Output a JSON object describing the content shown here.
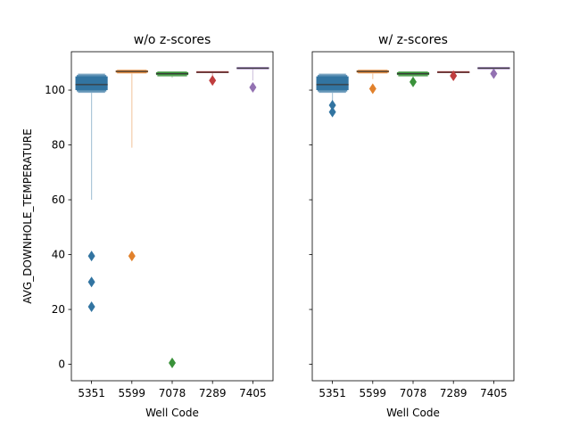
{
  "chart_data": [
    {
      "type": "boxen",
      "title": "w/o z-scores",
      "xlabel": "Well Code",
      "ylabel": "AVG_DOWNHOLE_TEMPERATURE",
      "ylim": [
        -6,
        114
      ],
      "yticks": [
        0,
        20,
        40,
        60,
        80,
        100
      ],
      "categories": [
        "5351",
        "5599",
        "7078",
        "7289",
        "7405"
      ],
      "colors": [
        "#3274a1",
        "#e1812c",
        "#3a923a",
        "#c03d3e",
        "#9372b2"
      ],
      "boxes": [
        {
          "median": 102,
          "boxes": [
            [
              100,
              105
            ],
            [
              99.5,
              105.5
            ],
            [
              99,
              106
            ]
          ],
          "tail": [
            60,
            99
          ],
          "outliers": [
            39.5,
            30,
            21
          ]
        },
        {
          "median": 106.8,
          "boxes": [
            [
              106.4,
              107.2
            ],
            [
              106.1,
              107.4
            ]
          ],
          "tail": [
            79,
            106
          ],
          "outliers": [
            39.5
          ]
        },
        {
          "median": 106,
          "boxes": [
            [
              105.5,
              106.5
            ],
            [
              105,
              106.8
            ]
          ],
          "tail": [
            104.5,
            105
          ],
          "outliers": [
            0.5
          ]
        },
        {
          "median": 106.5,
          "boxes": [
            [
              106.2,
              106.9
            ]
          ],
          "tail": [
            105,
            106.2
          ],
          "outliers": [
            103.5
          ]
        },
        {
          "median": 108,
          "boxes": [
            [
              107.6,
              108.4
            ]
          ],
          "tail": [
            103.5,
            107.6
          ],
          "outliers": [
            101
          ]
        }
      ]
    },
    {
      "type": "boxen",
      "title": "w/ z-scores",
      "xlabel": "Well Code",
      "ylabel": "",
      "ylim": [
        -6,
        114
      ],
      "yticks": [
        0,
        20,
        40,
        60,
        80,
        100
      ],
      "categories": [
        "5351",
        "5599",
        "7078",
        "7289",
        "7405"
      ],
      "colors": [
        "#3274a1",
        "#e1812c",
        "#3a923a",
        "#c03d3e",
        "#9372b2"
      ],
      "boxes": [
        {
          "median": 102,
          "boxes": [
            [
              100,
              105
            ],
            [
              99.5,
              105.5
            ],
            [
              99,
              106
            ]
          ],
          "tail": [
            96,
            99
          ],
          "outliers": [
            94.5,
            92
          ]
        },
        {
          "median": 106.8,
          "boxes": [
            [
              106.4,
              107.2
            ],
            [
              106.1,
              107.4
            ]
          ],
          "tail": [
            104,
            106
          ],
          "outliers": [
            100.5
          ]
        },
        {
          "median": 106,
          "boxes": [
            [
              105.5,
              106.5
            ],
            [
              105,
              106.8
            ]
          ],
          "tail": [
            104.5,
            105
          ],
          "outliers": [
            103
          ]
        },
        {
          "median": 106.5,
          "boxes": [
            [
              106.2,
              106.9
            ]
          ],
          "tail": [
            105.5,
            106.2
          ],
          "outliers": [
            105.2
          ]
        },
        {
          "median": 108,
          "boxes": [
            [
              107.6,
              108.4
            ]
          ],
          "tail": [
            106.8,
            107.6
          ],
          "outliers": [
            106
          ]
        }
      ]
    }
  ]
}
